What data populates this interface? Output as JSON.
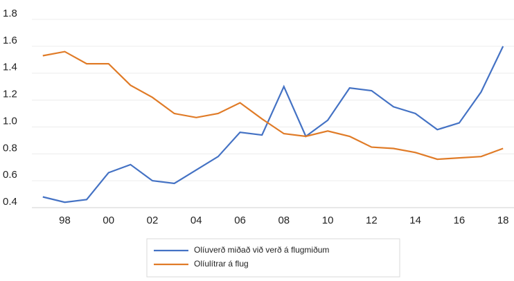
{
  "chart_data": {
    "type": "line",
    "categories": [
      null,
      "98",
      null,
      "00",
      null,
      "02",
      null,
      "04",
      null,
      "06",
      null,
      "08",
      null,
      "10",
      null,
      "12",
      null,
      "14",
      null,
      "16",
      null,
      "18"
    ],
    "series": [
      {
        "name": "Olíuverð miðað við verð á flugmiðum",
        "color": "#4472c4",
        "values": [
          0.48,
          0.44,
          0.46,
          0.66,
          0.72,
          0.6,
          0.58,
          0.68,
          0.78,
          0.96,
          0.94,
          1.3,
          0.93,
          1.05,
          1.29,
          1.27,
          1.15,
          1.1,
          0.98,
          1.03,
          1.26,
          1.6
        ]
      },
      {
        "name": "Olíulítrar á flug",
        "color": "#e07b27",
        "values": [
          1.53,
          1.56,
          1.47,
          1.47,
          1.31,
          1.22,
          1.1,
          1.07,
          1.1,
          1.18,
          1.06,
          0.95,
          0.93,
          0.97,
          0.93,
          0.85,
          0.84,
          0.81,
          0.76,
          0.77,
          0.78,
          0.84
        ]
      }
    ],
    "ylim": [
      0.4,
      1.8
    ],
    "yticks": [
      0.4,
      0.6,
      0.8,
      {
        "value": 1,
        "label": "1.0"
      },
      1.2,
      1.4,
      1.6,
      1.8
    ],
    "grid": true
  }
}
